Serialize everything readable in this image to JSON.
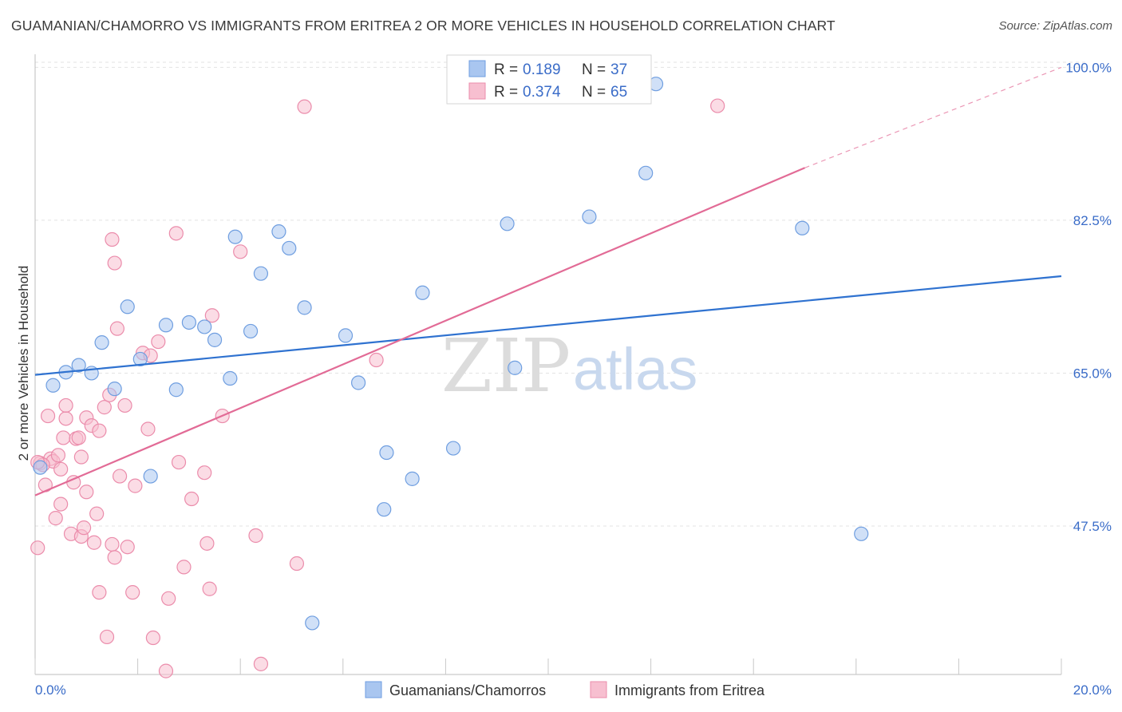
{
  "title": "GUAMANIAN/CHAMORRO VS IMMIGRANTS FROM ERITREA 2 OR MORE VEHICLES IN HOUSEHOLD CORRELATION CHART",
  "source": "Source: ZipAtlas.com",
  "watermark": {
    "zip": "ZIP",
    "atlas": "atlas"
  },
  "colors": {
    "blue_fill": "#a9c6f0",
    "blue_stroke": "#6f9ee0",
    "blue_line": "#2f72d0",
    "pink_fill": "#f7bfd0",
    "pink_stroke": "#eb8cab",
    "pink_line": "#e26b96",
    "grid": "#e3e3e3",
    "tick_text": "#3a6cc8"
  },
  "legend": {
    "rows": [
      {
        "r_label": "R =",
        "r_value": "0.189",
        "n_label": "N =",
        "n_value": "37",
        "series": "blue"
      },
      {
        "r_label": "R =",
        "r_value": "0.374",
        "n_label": "N =",
        "n_value": "65",
        "series": "pink"
      }
    ]
  },
  "chart_data": {
    "type": "scatter",
    "title": "GUAMANIAN/CHAMORRO VS IMMIGRANTS FROM ERITREA 2 OR MORE VEHICLES IN HOUSEHOLD CORRELATION CHART",
    "xlabel": "",
    "ylabel": "2 or more Vehicles in Household",
    "xlim": [
      0,
      20
    ],
    "ylim": [
      30.5,
      101.5
    ],
    "x_ticks": [
      "0.0%",
      "20.0%"
    ],
    "y_ticks": [
      {
        "value": 100,
        "label": "100.0%"
      },
      {
        "value": 82.5,
        "label": "82.5%"
      },
      {
        "value": 65,
        "label": "65.0%"
      },
      {
        "value": 47.5,
        "label": "47.5%"
      }
    ],
    "grid": true,
    "legend_position": "top-center",
    "series": [
      {
        "name": "Guamanians/Chamorros",
        "color": "blue",
        "trend": {
          "x": [
            0,
            20
          ],
          "y": [
            64.8,
            76.1
          ],
          "dashed_to": null
        },
        "points": [
          [
            0.1,
            54.2
          ],
          [
            0.35,
            63.6
          ],
          [
            0.6,
            65.1
          ],
          [
            0.85,
            65.9
          ],
          [
            1.1,
            65.0
          ],
          [
            1.3,
            68.5
          ],
          [
            1.55,
            63.2
          ],
          [
            1.8,
            72.6
          ],
          [
            2.05,
            66.6
          ],
          [
            2.25,
            53.2
          ],
          [
            2.55,
            70.5
          ],
          [
            2.75,
            63.1
          ],
          [
            3.0,
            70.8
          ],
          [
            3.3,
            70.3
          ],
          [
            3.5,
            68.8
          ],
          [
            3.8,
            64.4
          ],
          [
            3.9,
            80.6
          ],
          [
            4.2,
            69.8
          ],
          [
            4.4,
            76.4
          ],
          [
            4.75,
            81.2
          ],
          [
            4.95,
            79.3
          ],
          [
            5.25,
            72.5
          ],
          [
            5.4,
            36.4
          ],
          [
            6.05,
            69.3
          ],
          [
            6.3,
            63.9
          ],
          [
            6.8,
            49.4
          ],
          [
            6.85,
            55.9
          ],
          [
            7.35,
            52.9
          ],
          [
            7.55,
            74.2
          ],
          [
            8.15,
            56.4
          ],
          [
            9.2,
            82.1
          ],
          [
            9.35,
            65.6
          ],
          [
            10.8,
            82.9
          ],
          [
            11.9,
            87.9
          ],
          [
            12.1,
            98.1
          ],
          [
            14.95,
            81.6
          ],
          [
            16.1,
            46.6
          ]
        ]
      },
      {
        "name": "Immigrants from Eritrea",
        "color": "pink",
        "trend": {
          "x": [
            0,
            15.0
          ],
          "y": [
            51.0,
            88.5
          ],
          "dashed_to": [
            20,
            100
          ]
        },
        "points": [
          [
            0.05,
            45.0
          ],
          [
            0.1,
            54.7
          ],
          [
            0.2,
            52.2
          ],
          [
            0.25,
            60.1
          ],
          [
            0.3,
            55.2
          ],
          [
            0.35,
            54.9
          ],
          [
            0.4,
            48.4
          ],
          [
            0.45,
            55.6
          ],
          [
            0.5,
            50.0
          ],
          [
            0.5,
            54.0
          ],
          [
            0.55,
            57.6
          ],
          [
            0.6,
            59.8
          ],
          [
            0.6,
            61.3
          ],
          [
            0.7,
            46.6
          ],
          [
            0.75,
            52.5
          ],
          [
            0.8,
            57.5
          ],
          [
            0.85,
            57.6
          ],
          [
            0.9,
            46.3
          ],
          [
            0.95,
            47.3
          ],
          [
            1.0,
            51.4
          ],
          [
            1.0,
            59.9
          ],
          [
            1.1,
            59.0
          ],
          [
            1.15,
            45.6
          ],
          [
            1.2,
            48.9
          ],
          [
            1.25,
            58.4
          ],
          [
            1.25,
            39.9
          ],
          [
            1.35,
            61.1
          ],
          [
            1.4,
            34.8
          ],
          [
            1.45,
            62.5
          ],
          [
            1.5,
            45.4
          ],
          [
            1.55,
            43.9
          ],
          [
            1.6,
            70.1
          ],
          [
            1.65,
            53.2
          ],
          [
            1.75,
            61.3
          ],
          [
            1.8,
            45.1
          ],
          [
            1.9,
            39.9
          ],
          [
            1.95,
            52.1
          ],
          [
            1.5,
            80.3
          ],
          [
            1.55,
            77.6
          ],
          [
            2.1,
            67.3
          ],
          [
            2.2,
            58.6
          ],
          [
            2.25,
            67.0
          ],
          [
            2.3,
            34.7
          ],
          [
            2.4,
            68.6
          ],
          [
            2.55,
            30.9
          ],
          [
            2.6,
            39.2
          ],
          [
            2.75,
            81.0
          ],
          [
            2.8,
            54.8
          ],
          [
            2.9,
            42.8
          ],
          [
            3.05,
            50.6
          ],
          [
            3.3,
            53.6
          ],
          [
            3.35,
            45.5
          ],
          [
            3.4,
            40.3
          ],
          [
            3.45,
            71.6
          ],
          [
            3.65,
            60.1
          ],
          [
            4.0,
            78.9
          ],
          [
            4.3,
            46.4
          ],
          [
            4.4,
            31.7
          ],
          [
            5.1,
            43.2
          ],
          [
            5.25,
            95.5
          ],
          [
            6.65,
            66.5
          ],
          [
            13.3,
            95.6
          ],
          [
            0.15,
            54.5
          ],
          [
            0.05,
            54.8
          ],
          [
            0.9,
            55.4
          ]
        ]
      }
    ]
  },
  "bottom_legend": [
    {
      "label": "Guamanians/Chamorros",
      "color": "blue"
    },
    {
      "label": "Immigrants from Eritrea",
      "color": "pink"
    }
  ]
}
